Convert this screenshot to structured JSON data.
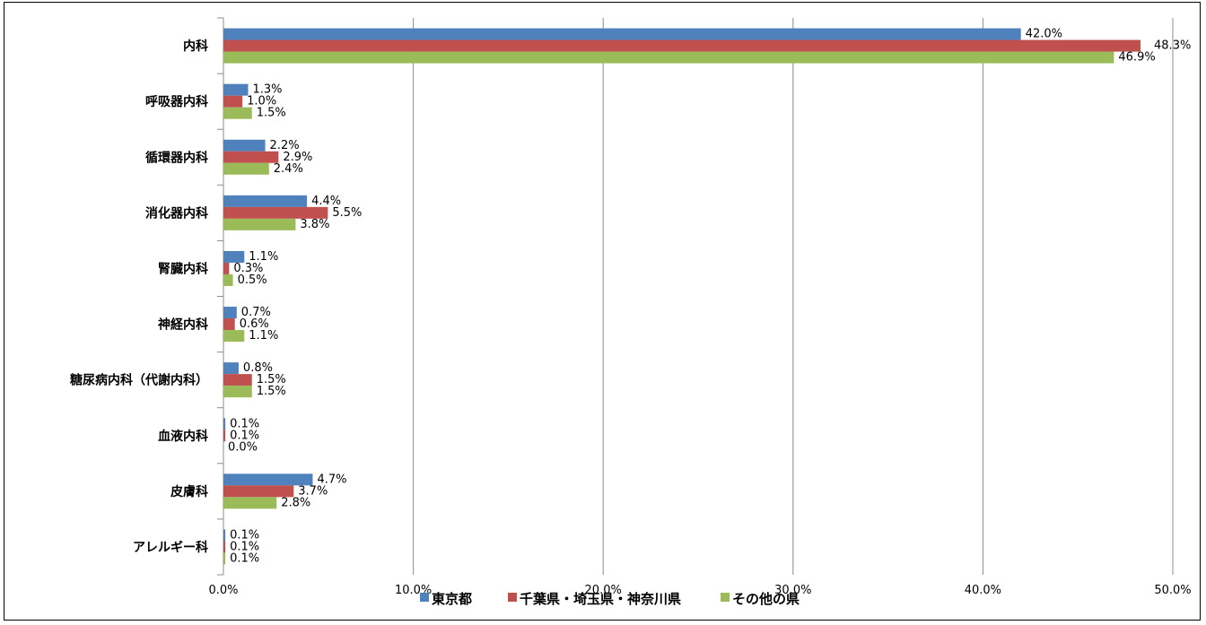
{
  "chart_data": {
    "type": "bar",
    "orientation": "horizontal",
    "categories": [
      "内科",
      "呼吸器内科",
      "循環器内科",
      "消化器内科",
      "腎臓内科",
      "神経内科",
      "糖尿病内科（代謝内科）",
      "血液内科",
      "皮膚科",
      "アレルギー科"
    ],
    "series": [
      {
        "name": "東京都",
        "color": "#4f81bd",
        "values": [
          42.0,
          1.3,
          2.2,
          4.4,
          1.1,
          0.7,
          0.8,
          0.1,
          4.7,
          0.1
        ],
        "labels": [
          "42.0%",
          "1.3%",
          "2.2%",
          "4.4%",
          "1.1%",
          "0.7%",
          "0.8%",
          "0.1%",
          "4.7%",
          "0.1%"
        ]
      },
      {
        "name": "千葉県・埼玉県・神奈川県",
        "color": "#c0504d",
        "values": [
          48.3,
          1.0,
          2.9,
          5.5,
          0.3,
          0.6,
          1.5,
          0.1,
          3.7,
          0.1
        ],
        "labels": [
          "48.3%",
          "1.0%",
          "2.9%",
          "5.5%",
          "0.3%",
          "0.6%",
          "1.5%",
          "0.1%",
          "3.7%",
          "0.1%"
        ]
      },
      {
        "name": "その他の県",
        "color": "#9bbb59",
        "values": [
          46.9,
          1.5,
          2.4,
          3.8,
          0.5,
          1.1,
          1.5,
          0.0,
          2.8,
          0.1
        ],
        "labels": [
          "46.9%",
          "1.5%",
          "2.4%",
          "3.8%",
          "0.5%",
          "1.1%",
          "1.5%",
          "0.0%",
          "2.8%",
          "0.1%"
        ]
      }
    ],
    "xlim": [
      0,
      50
    ],
    "xticks": [
      "0.0%",
      "10.0%",
      "20.0%",
      "30.0%",
      "40.0%",
      "50.0%"
    ],
    "grid": true,
    "legend": "bottom-center",
    "title": "",
    "xlabel": "",
    "ylabel": ""
  }
}
